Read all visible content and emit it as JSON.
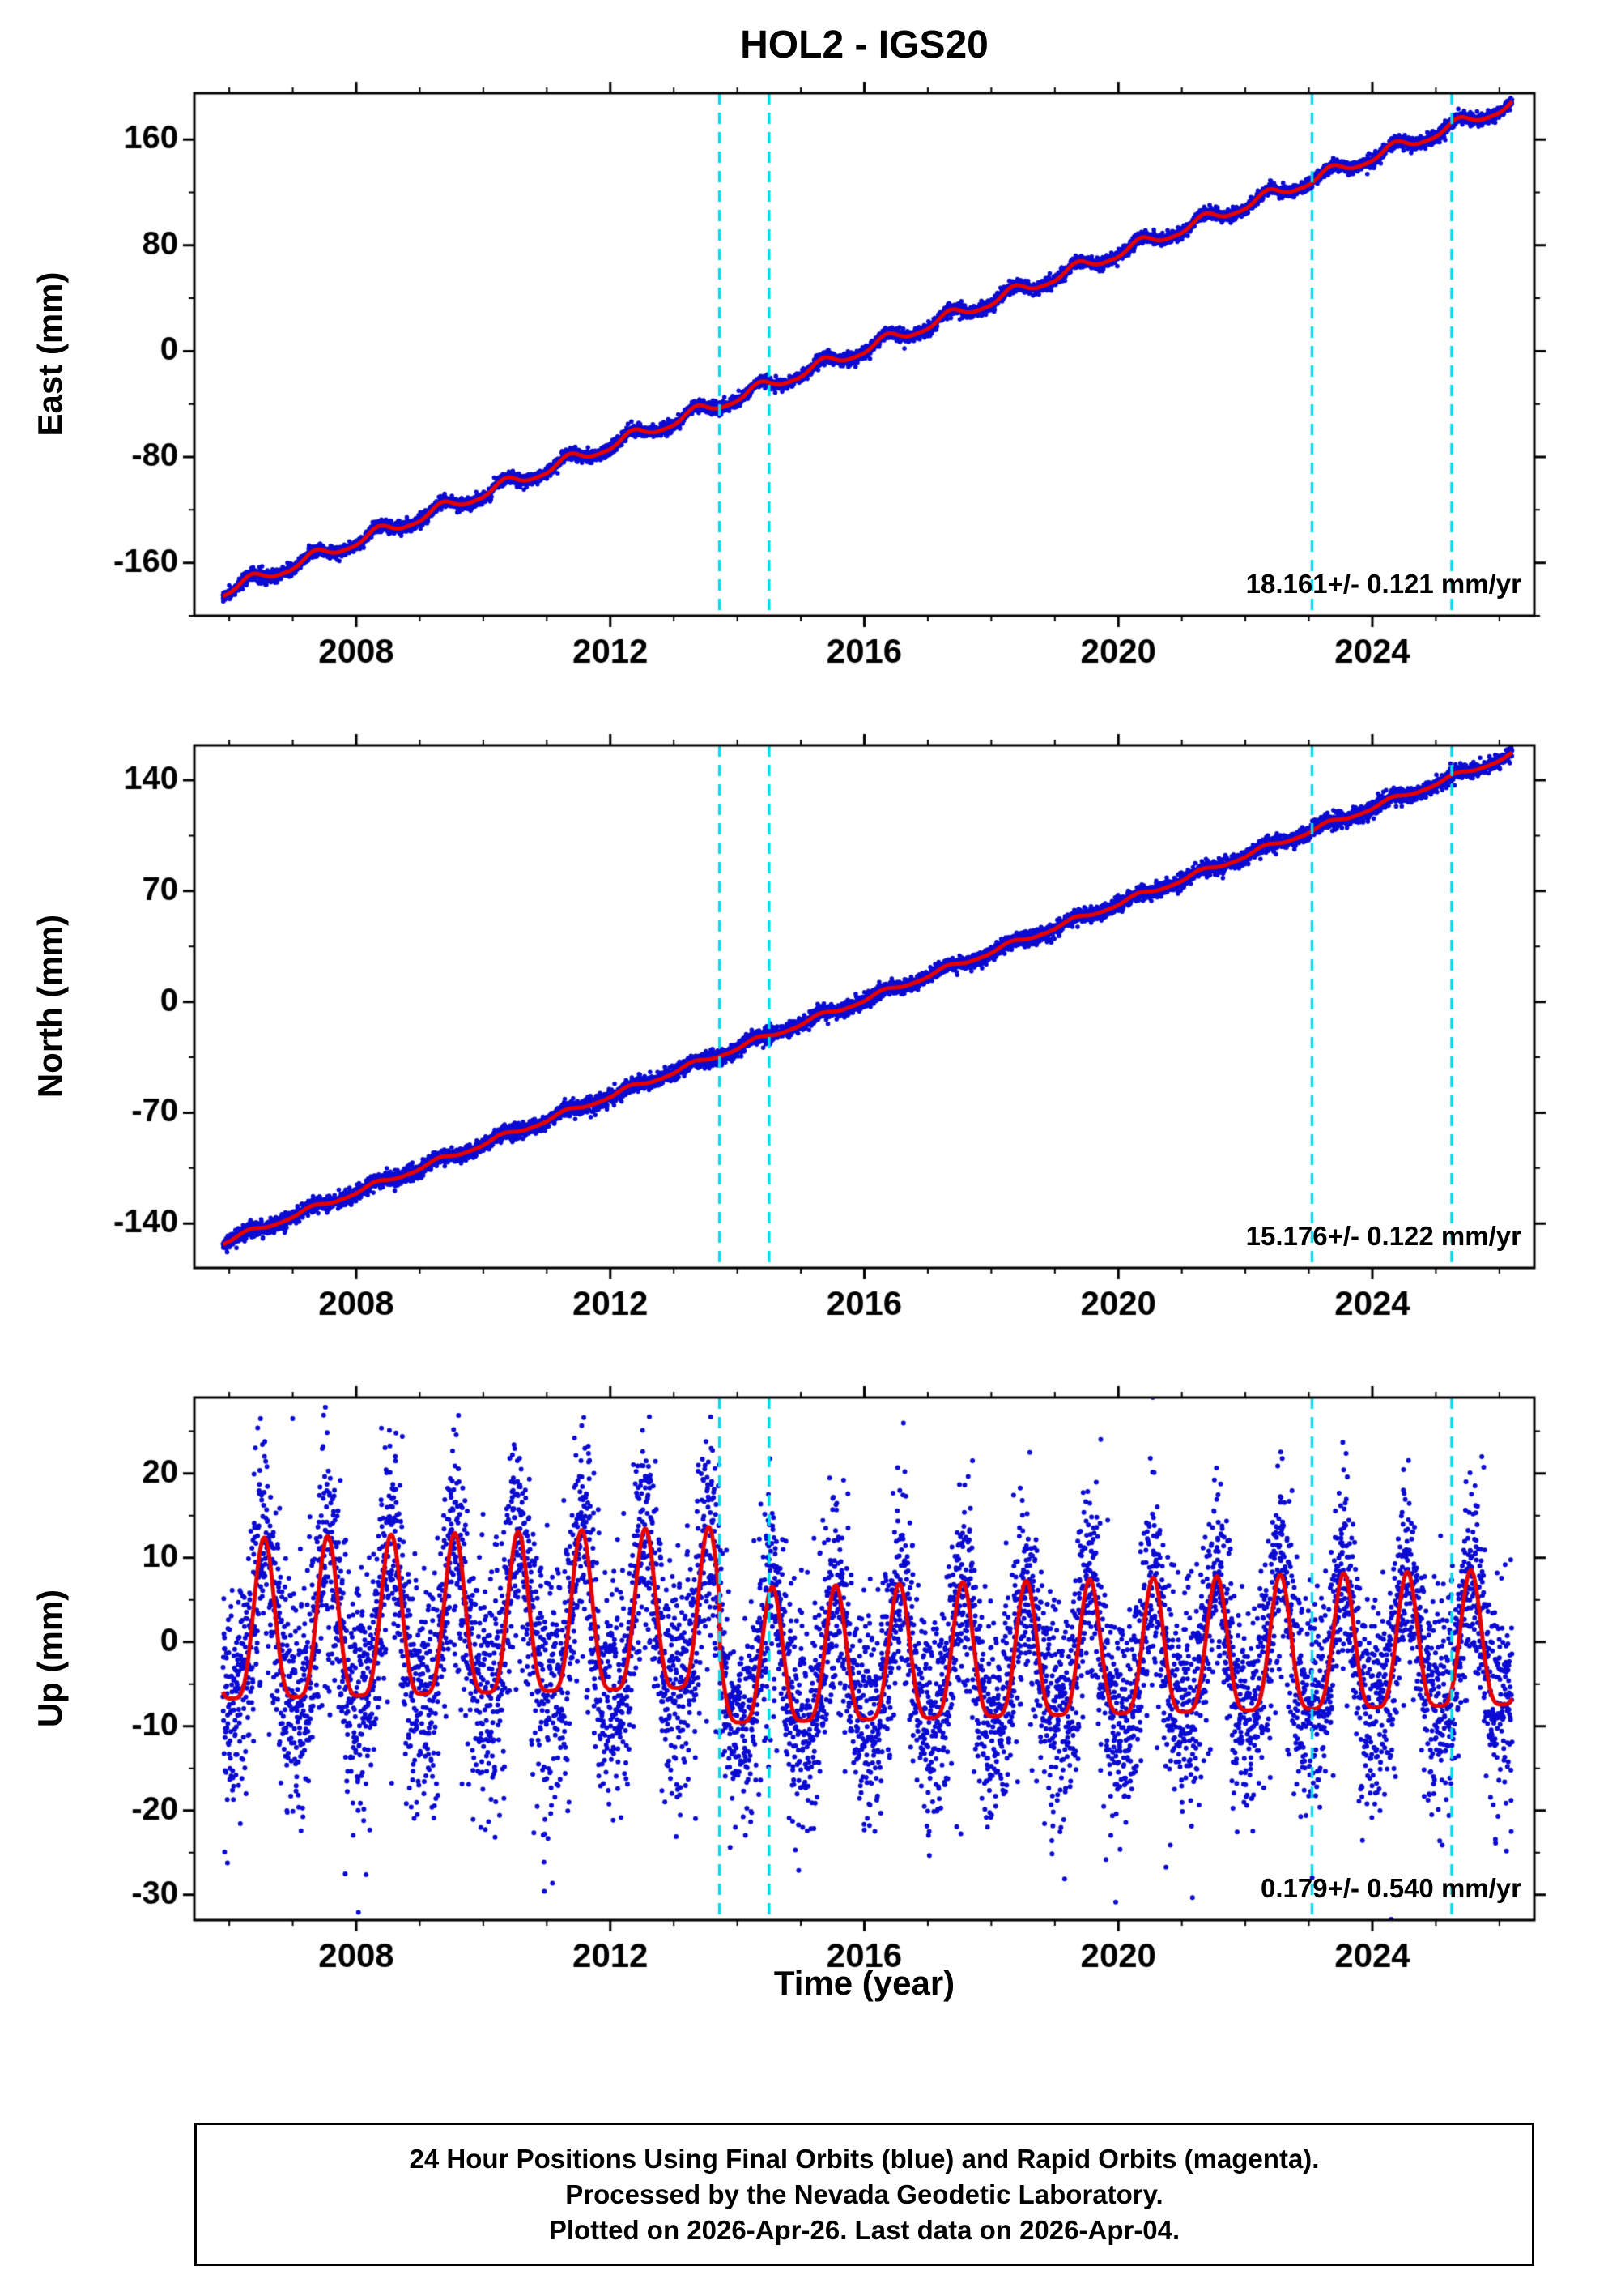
{
  "title": "HOL2 - IGS20",
  "xlabel": "Time (year)",
  "footer": {
    "line1": "24 Hour Positions Using Final Orbits (blue) and Rapid Orbits (magenta).",
    "line2": "Processed by the Nevada Geodetic Laboratory.",
    "line3": "Plotted on 2026-Apr-26. Last data on 2026-Apr-04."
  },
  "colors": {
    "points_blue": "#0A0AD2",
    "model_red": "#E60000",
    "event_cyan": "#00DDEE",
    "frame_black": "#000000"
  },
  "axis": {
    "xlim": [
      2005.45,
      2026.55
    ],
    "xticks": [
      2008,
      2012,
      2016,
      2020,
      2024
    ],
    "x_minor_step": 1
  },
  "events_vlines": [
    2013.72,
    2014.5,
    2023.05,
    2025.25
  ],
  "chart_data": [
    {
      "id": "east",
      "type": "scatter",
      "ylabel": "East (mm)",
      "rate_label": "18.161+/- 0.121 mm/yr",
      "ylim": [
        -200,
        195
      ],
      "yticks": [
        -160,
        -80,
        0,
        80,
        160
      ],
      "y_minor_step": 40,
      "x_start": 2005.9,
      "x_end": 2026.2,
      "points_per_year": 365,
      "model": {
        "start_value": -182,
        "slope_mm_per_yr": 18.161,
        "annual_amp": 4.2,
        "semiannual_amp": 1.0,
        "annual_phase": 0.35
      },
      "noise_sigma": 2.3
    },
    {
      "id": "north",
      "type": "scatter",
      "ylabel": "North (mm)",
      "rate_label": "15.176+/- 0.122 mm/yr",
      "ylim": [
        -168,
        162
      ],
      "yticks": [
        -140,
        -70,
        0,
        70,
        140
      ],
      "y_minor_step": 35,
      "x_start": 2005.9,
      "x_end": 2026.2,
      "points_per_year": 365,
      "model": {
        "start_value": -152,
        "slope_mm_per_yr": 15.176,
        "annual_amp": 1.6,
        "semiannual_amp": 0.4,
        "annual_phase": 0.3
      },
      "noise_sigma": 2.3
    },
    {
      "id": "up",
      "type": "scatter",
      "ylabel": "Up (mm)",
      "rate_label": "0.179+/- 0.540 mm/yr",
      "ylim": [
        -33,
        29
      ],
      "yticks": [
        -30,
        -20,
        -10,
        0,
        10,
        20
      ],
      "y_minor_step": 5,
      "x_start": 2005.9,
      "x_end": 2026.2,
      "points_per_year": 365,
      "model": {
        "slope_mm_per_yr": 0.179,
        "break_year": 2013.72,
        "mean_before": 2.2,
        "mean_after": -3.2,
        "annual_amp_before": 9.5,
        "annual_amp_after": 8.0,
        "annual_phase": 0.55,
        "peak_sharpen": 0.25
      },
      "noise_sigma_before": 7.0,
      "noise_sigma_after": 6.0,
      "outlier_fraction": 0.04,
      "outlier_scale": 1.9
    }
  ]
}
